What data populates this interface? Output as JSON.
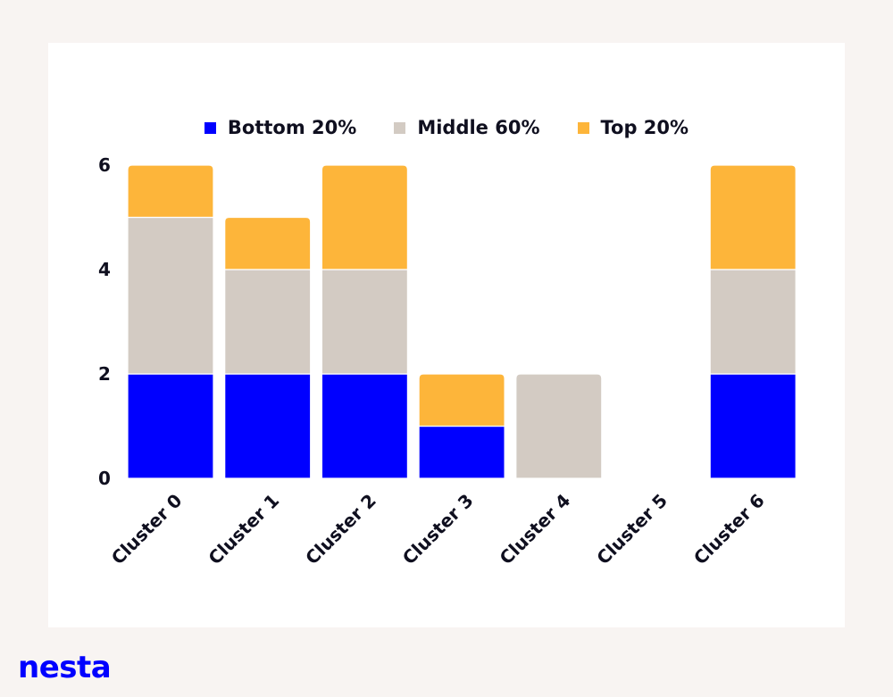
{
  "chart_data": {
    "type": "bar",
    "stacked": true,
    "categories": [
      "Cluster 0",
      "Cluster 1",
      "Cluster 2",
      "Cluster 3",
      "Cluster 4",
      "Cluster 5",
      "Cluster 6"
    ],
    "series": [
      {
        "name": "Bottom 20%",
        "color": "#0000ff",
        "values": [
          2,
          2,
          2,
          1,
          0,
          0,
          2
        ]
      },
      {
        "name": "Middle 60%",
        "color": "#d3cbc3",
        "values": [
          3,
          2,
          2,
          0,
          2,
          0,
          2
        ]
      },
      {
        "name": "Top 20%",
        "color": "#fdb53a",
        "values": [
          1,
          1,
          2,
          1,
          0,
          0,
          2
        ]
      }
    ],
    "yticks": [
      "0",
      "2",
      "4",
      "6"
    ],
    "ylim": [
      0,
      6
    ],
    "legend_position": "top-center",
    "grid": false
  },
  "brand": {
    "logo_text": "nesta",
    "color": "#0000ff"
  }
}
